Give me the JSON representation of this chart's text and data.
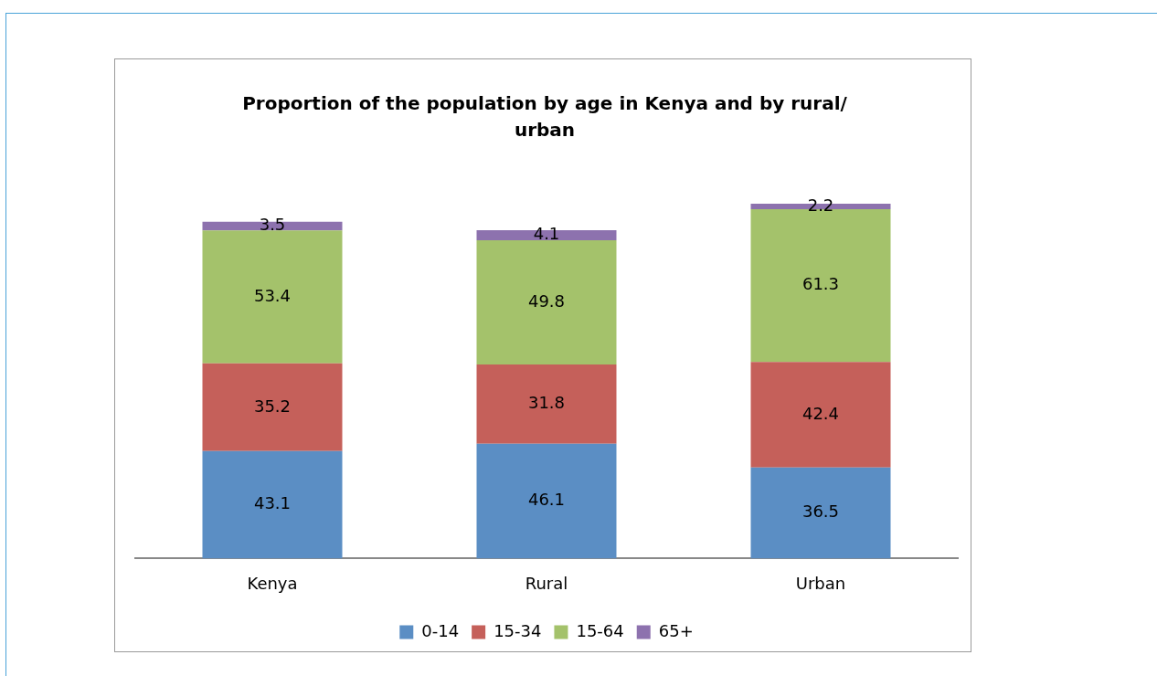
{
  "chart_data": {
    "type": "bar",
    "title": "Proportion of the population by age in Kenya and by rural/ urban",
    "categories": [
      "Kenya",
      "Rural",
      "Urban"
    ],
    "stacked": true,
    "data_labels": true,
    "legend": "bottom",
    "grid": false,
    "tick_labels": "x",
    "series": [
      {
        "name": "0-14",
        "color": "#5b8ec4",
        "values": [
          43.1,
          46.1,
          36.5
        ]
      },
      {
        "name": "15-34",
        "color": "#c5605a",
        "values": [
          35.2,
          31.8,
          42.4
        ]
      },
      {
        "name": "15-64",
        "color": "#a4c26b",
        "values": [
          53.4,
          49.8,
          61.3
        ]
      },
      {
        "name": "65+",
        "color": "#8d72ae",
        "values": [
          3.5,
          4.1,
          2.2
        ]
      }
    ]
  }
}
